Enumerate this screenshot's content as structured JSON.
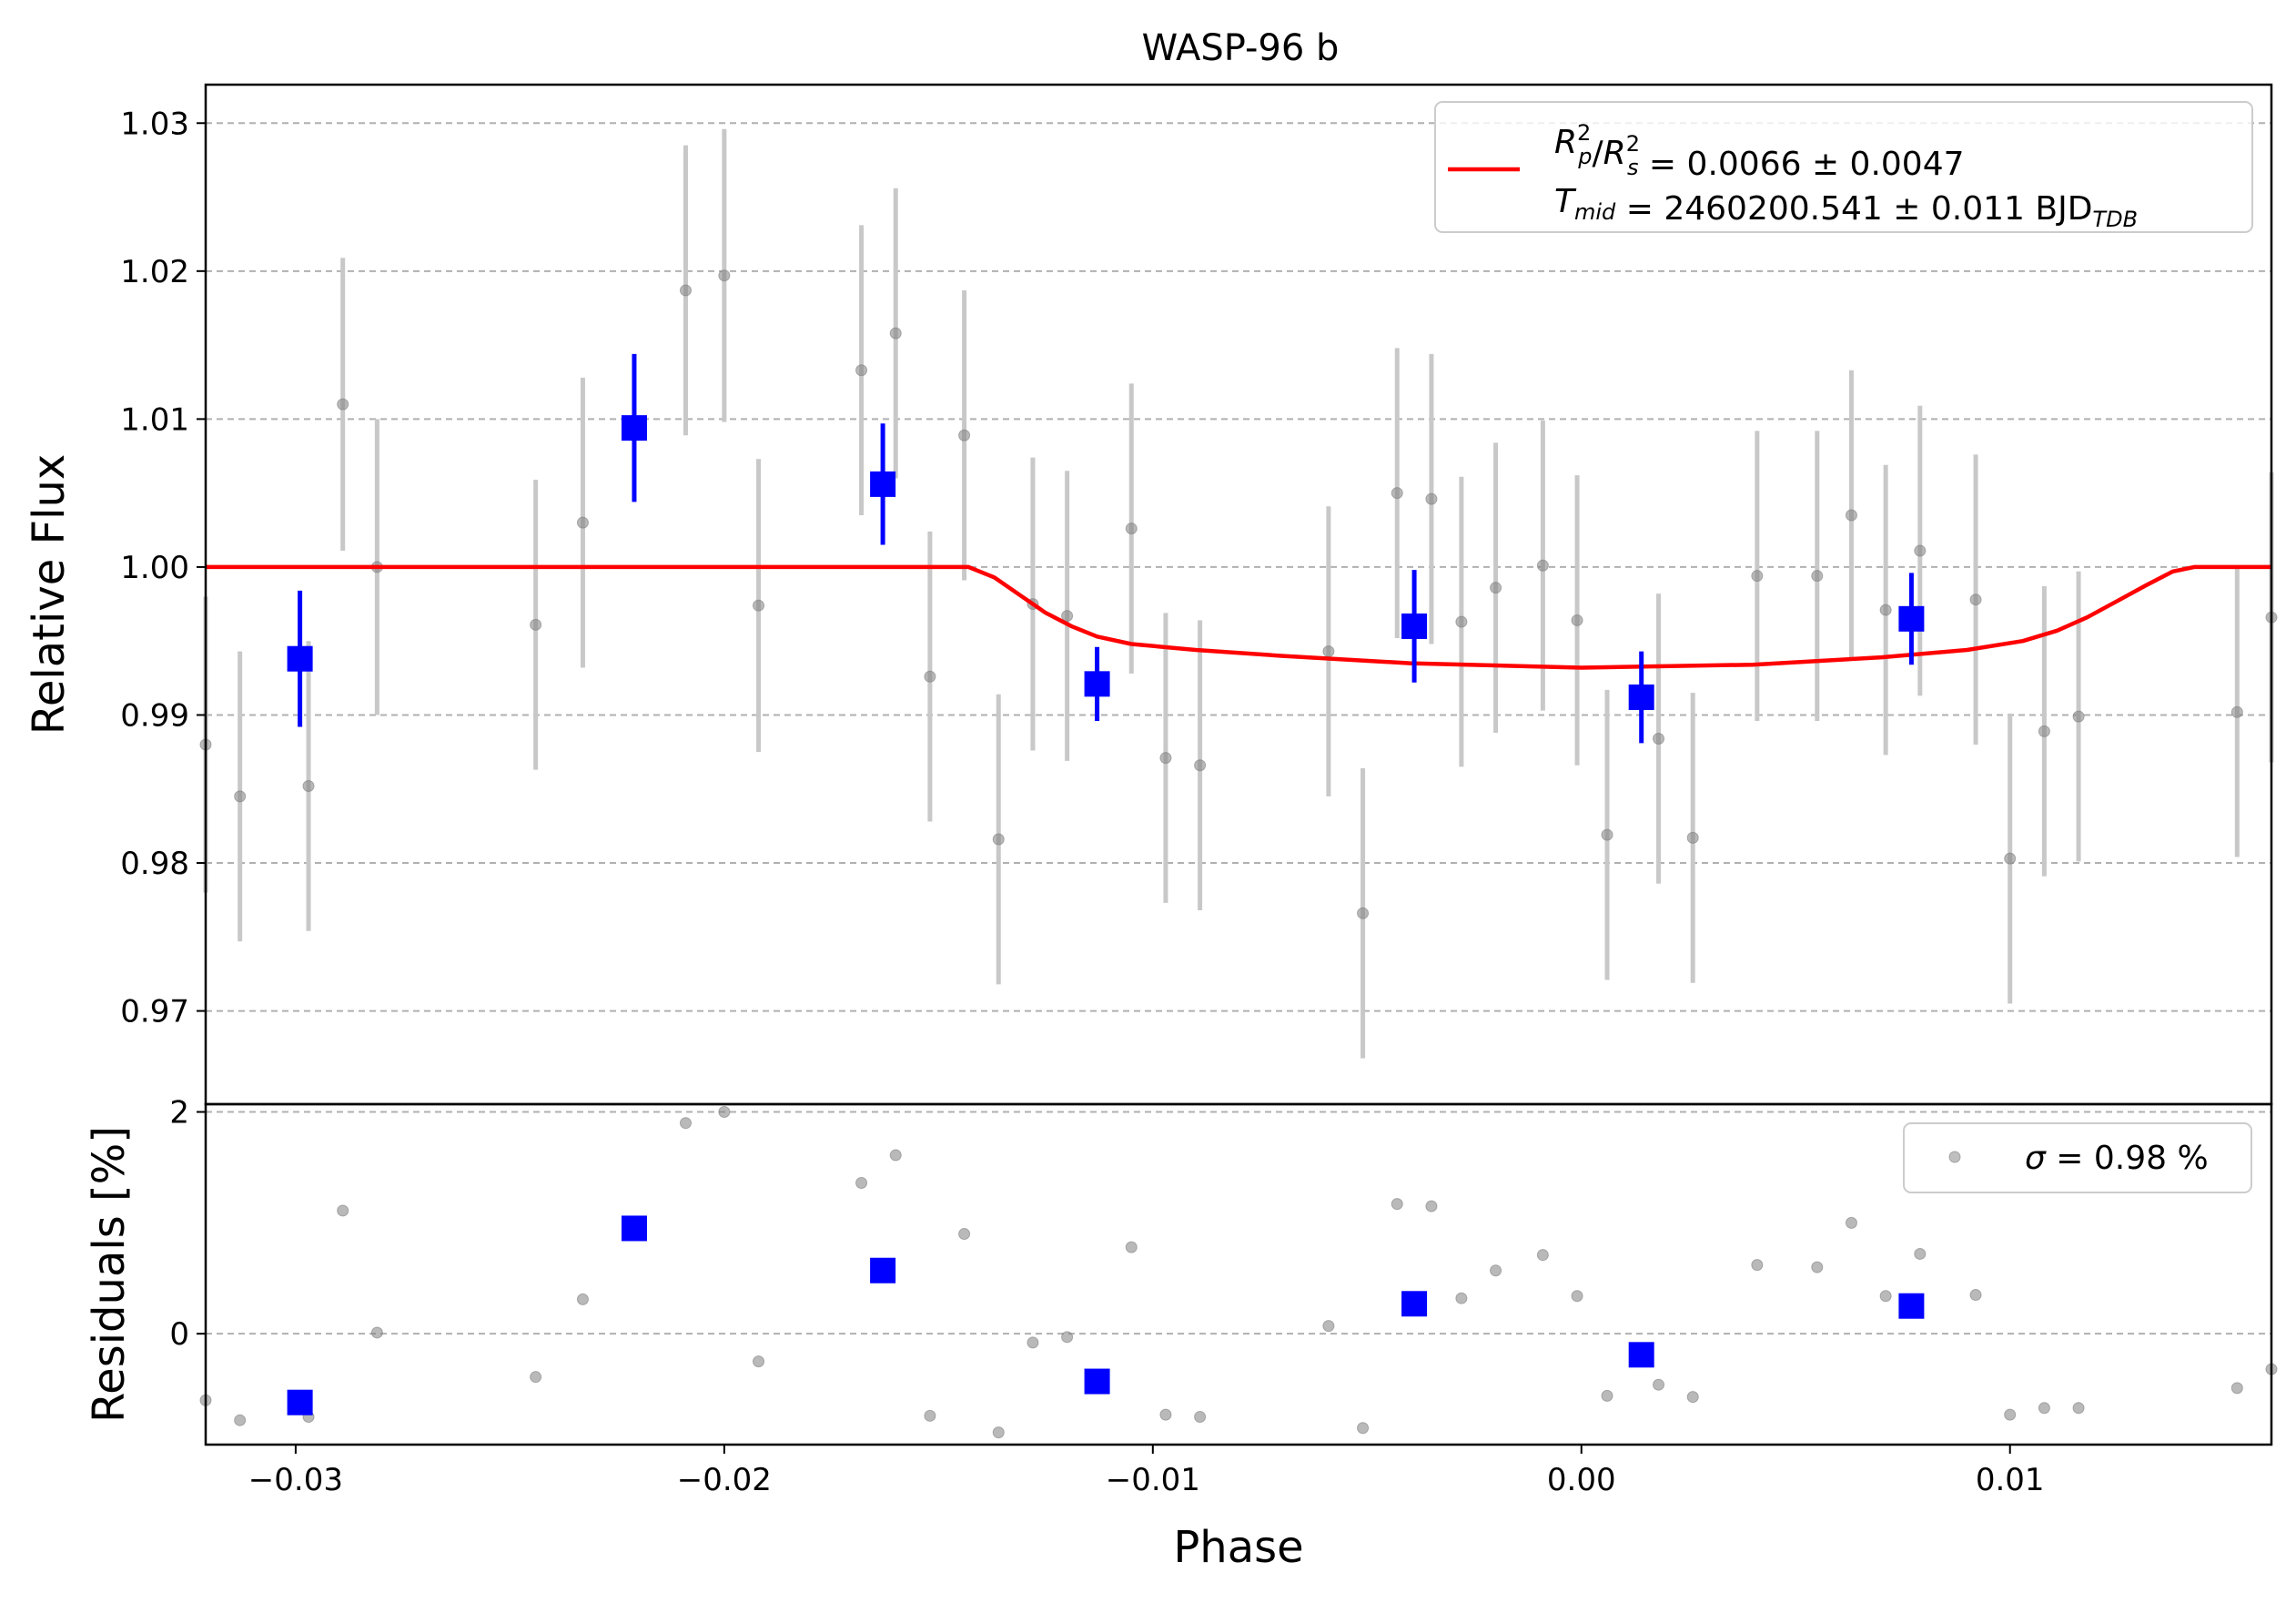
{
  "chart_data": {
    "type": "scatter",
    "title": "WASP-96 b",
    "xlabel": "Phase",
    "top_panel": {
      "ylabel": "Relative Flux",
      "xlim": [
        -0.0321,
        0.0161
      ],
      "ylim": [
        0.9637,
        1.0326
      ],
      "yticks": [
        0.97,
        0.98,
        0.99,
        1.0,
        1.01,
        1.02,
        1.03
      ],
      "ytick_labels": [
        "0.97",
        "0.98",
        "0.99",
        "1.00",
        "1.01",
        "1.02",
        "1.03"
      ],
      "grid": "horizontal dashed",
      "legend_position": "top-right",
      "legend_lines": [
        {
          "prefix": "",
          "parts": [
            {
              "t": "R",
              "i": true
            },
            {
              "t": "2",
              "sup": true,
              "sub": "p"
            },
            {
              "t": "/"
            },
            {
              "t": "R",
              "i": true
            },
            {
              "t": "2",
              "sup": true,
              "sub": "s"
            },
            {
              "t": " = 0.0066 ± 0.0047"
            }
          ]
        },
        {
          "prefix": "",
          "parts": [
            {
              "t": "T",
              "i": true
            },
            {
              "t": "",
              "sub": "mid"
            },
            {
              "t": " = 2460200.541 ± 0.011 BJD"
            },
            {
              "t": "",
              "sub": "TDB"
            }
          ]
        }
      ],
      "raw_series": {
        "name": "",
        "color": "#808080",
        "points": [
          {
            "x": -0.0321,
            "y": 0.988,
            "err": 0.01
          },
          {
            "x": -0.0313,
            "y": 0.9845,
            "err": 0.0098
          },
          {
            "x": -0.0297,
            "y": 0.9852,
            "err": 0.0098
          },
          {
            "x": -0.0289,
            "y": 1.011,
            "err": 0.0099
          },
          {
            "x": -0.0281,
            "y": 1.0,
            "err": 0.01
          },
          {
            "x": -0.0244,
            "y": 0.9961,
            "err": 0.0098
          },
          {
            "x": -0.0233,
            "y": 1.003,
            "err": 0.0098
          },
          {
            "x": -0.0209,
            "y": 1.0187,
            "err": 0.0098
          },
          {
            "x": -0.02,
            "y": 1.0197,
            "err": 0.0099
          },
          {
            "x": -0.0192,
            "y": 0.9974,
            "err": 0.0099
          },
          {
            "x": -0.0168,
            "y": 1.0133,
            "err": 0.0098
          },
          {
            "x": -0.016,
            "y": 1.0158,
            "err": 0.0098
          },
          {
            "x": -0.0152,
            "y": 0.9926,
            "err": 0.0098
          },
          {
            "x": -0.0144,
            "y": 1.0089,
            "err": 0.0098
          },
          {
            "x": -0.0136,
            "y": 0.9816,
            "err": 0.0098
          },
          {
            "x": -0.0128,
            "y": 0.9975,
            "err": 0.0099
          },
          {
            "x": -0.012,
            "y": 0.9967,
            "err": 0.0098
          },
          {
            "x": -0.0105,
            "y": 1.0026,
            "err": 0.0098
          },
          {
            "x": -0.0097,
            "y": 0.9871,
            "err": 0.0098
          },
          {
            "x": -0.0089,
            "y": 0.9866,
            "err": 0.0098
          },
          {
            "x": -0.0059,
            "y": 0.9943,
            "err": 0.0098
          },
          {
            "x": -0.0051,
            "y": 0.9766,
            "err": 0.0098
          },
          {
            "x": -0.0043,
            "y": 1.005,
            "err": 0.0098
          },
          {
            "x": -0.0035,
            "y": 1.0046,
            "err": 0.0098
          },
          {
            "x": -0.0028,
            "y": 0.9963,
            "err": 0.0098
          },
          {
            "x": -0.002,
            "y": 0.9986,
            "err": 0.0098
          },
          {
            "x": -0.0009,
            "y": 1.0001,
            "err": 0.0098
          },
          {
            "x": -0.0001,
            "y": 0.9964,
            "err": 0.0098
          },
          {
            "x": 0.0006,
            "y": 0.9819,
            "err": 0.0098
          },
          {
            "x": 0.0018,
            "y": 0.9884,
            "err": 0.0098
          },
          {
            "x": 0.0026,
            "y": 0.9817,
            "err": 0.0098
          },
          {
            "x": 0.0041,
            "y": 0.9994,
            "err": 0.0098
          },
          {
            "x": 0.0055,
            "y": 0.9994,
            "err": 0.0098
          },
          {
            "x": 0.0063,
            "y": 1.0035,
            "err": 0.0098
          },
          {
            "x": 0.0071,
            "y": 0.9971,
            "err": 0.0098
          },
          {
            "x": 0.0079,
            "y": 1.0011,
            "err": 0.0098
          },
          {
            "x": 0.0092,
            "y": 0.9978,
            "err": 0.0098
          },
          {
            "x": 0.01,
            "y": 0.9803,
            "err": 0.0098
          },
          {
            "x": 0.0108,
            "y": 0.9889,
            "err": 0.0098
          },
          {
            "x": 0.0116,
            "y": 0.9899,
            "err": 0.0098
          },
          {
            "x": 0.0153,
            "y": 0.9902,
            "err": 0.0098
          },
          {
            "x": 0.0161,
            "y": 0.9966,
            "err": 0.0098
          }
        ]
      },
      "binned_series": {
        "name": "",
        "color": "#0000ff",
        "points": [
          {
            "x": -0.0299,
            "y": 0.9938,
            "err": 0.0046
          },
          {
            "x": -0.0221,
            "y": 1.0094,
            "err": 0.005
          },
          {
            "x": -0.0163,
            "y": 1.0056,
            "err": 0.0041
          },
          {
            "x": -0.0113,
            "y": 0.9921,
            "err": 0.0025
          },
          {
            "x": -0.0039,
            "y": 0.996,
            "err": 0.0038
          },
          {
            "x": 0.0014,
            "y": 0.9912,
            "err": 0.0031
          },
          {
            "x": 0.0077,
            "y": 0.9965,
            "err": 0.0031
          }
        ]
      },
      "model_series": {
        "name": "",
        "color": "#ff0000",
        "points": [
          {
            "x": -0.0321,
            "y": 1.0
          },
          {
            "x": -0.0143,
            "y": 1.0
          },
          {
            "x": -0.0137,
            "y": 0.9993
          },
          {
            "x": -0.0131,
            "y": 0.9981
          },
          {
            "x": -0.0125,
            "y": 0.9969
          },
          {
            "x": -0.0119,
            "y": 0.996
          },
          {
            "x": -0.0113,
            "y": 0.9953
          },
          {
            "x": -0.0105,
            "y": 0.9948
          },
          {
            "x": -0.009,
            "y": 0.9944
          },
          {
            "x": -0.007,
            "y": 0.994
          },
          {
            "x": -0.004,
            "y": 0.9935
          },
          {
            "x": 0.0,
            "y": 0.9932
          },
          {
            "x": 0.004,
            "y": 0.9934
          },
          {
            "x": 0.007,
            "y": 0.9939
          },
          {
            "x": 0.009,
            "y": 0.9944
          },
          {
            "x": 0.0103,
            "y": 0.995
          },
          {
            "x": 0.0111,
            "y": 0.9957
          },
          {
            "x": 0.0118,
            "y": 0.9966
          },
          {
            "x": 0.0125,
            "y": 0.9977
          },
          {
            "x": 0.0132,
            "y": 0.9988
          },
          {
            "x": 0.0138,
            "y": 0.9997
          },
          {
            "x": 0.0143,
            "y": 1.0
          },
          {
            "x": 0.0161,
            "y": 1.0
          }
        ]
      }
    },
    "bottom_panel": {
      "ylabel": "Residuals [%]",
      "ylim": [
        -1.0,
        2.07
      ],
      "yticks": [
        0,
        2
      ],
      "ytick_labels": [
        "0",
        "2"
      ],
      "grid": "horizontal dashed",
      "legend_position": "top-right",
      "legend_label": "σ = 0.98 %",
      "raw_residuals": [
        {
          "x": -0.0321,
          "y": -0.6
        },
        {
          "x": -0.0313,
          "y": -0.78
        },
        {
          "x": -0.0297,
          "y": -0.75
        },
        {
          "x": -0.0289,
          "y": 1.11
        },
        {
          "x": -0.0281,
          "y": 0.01
        },
        {
          "x": -0.0244,
          "y": -0.39
        },
        {
          "x": -0.0233,
          "y": 0.31
        },
        {
          "x": -0.0209,
          "y": 1.9
        },
        {
          "x": -0.02,
          "y": 2.0
        },
        {
          "x": -0.0192,
          "y": -0.25
        },
        {
          "x": -0.0168,
          "y": 1.36
        },
        {
          "x": -0.016,
          "y": 1.61
        },
        {
          "x": -0.0152,
          "y": -0.74
        },
        {
          "x": -0.0144,
          "y": 0.9
        },
        {
          "x": -0.0136,
          "y": -0.89
        },
        {
          "x": -0.0128,
          "y": -0.08
        },
        {
          "x": -0.012,
          "y": -0.03
        },
        {
          "x": -0.0105,
          "y": 0.78
        },
        {
          "x": -0.0097,
          "y": -0.73
        },
        {
          "x": -0.0089,
          "y": -0.75
        },
        {
          "x": -0.0059,
          "y": 0.07
        },
        {
          "x": -0.0051,
          "y": -0.85
        },
        {
          "x": -0.0043,
          "y": 1.17
        },
        {
          "x": -0.0035,
          "y": 1.15
        },
        {
          "x": -0.0028,
          "y": 0.32
        },
        {
          "x": -0.002,
          "y": 0.57
        },
        {
          "x": -0.0009,
          "y": 0.71
        },
        {
          "x": -0.0001,
          "y": 0.34
        },
        {
          "x": 0.0006,
          "y": -0.56
        },
        {
          "x": 0.0018,
          "y": -0.46
        },
        {
          "x": 0.0026,
          "y": -0.57
        },
        {
          "x": 0.0041,
          "y": 0.62
        },
        {
          "x": 0.0055,
          "y": 0.6
        },
        {
          "x": 0.0063,
          "y": 1.0
        },
        {
          "x": 0.0071,
          "y": 0.34
        },
        {
          "x": 0.0079,
          "y": 0.72
        },
        {
          "x": 0.0092,
          "y": 0.35
        },
        {
          "x": 0.01,
          "y": -0.73
        },
        {
          "x": 0.0108,
          "y": -0.67
        },
        {
          "x": 0.0116,
          "y": -0.67
        },
        {
          "x": 0.0153,
          "y": -0.49
        },
        {
          "x": 0.0161,
          "y": -0.32
        }
      ],
      "binned_residuals": [
        {
          "x": -0.0299,
          "y": -0.62
        },
        {
          "x": -0.0221,
          "y": 0.95
        },
        {
          "x": -0.0163,
          "y": 0.57
        },
        {
          "x": -0.0113,
          "y": -0.43
        },
        {
          "x": -0.0039,
          "y": 0.27
        },
        {
          "x": 0.0014,
          "y": -0.19
        },
        {
          "x": 0.0077,
          "y": 0.25
        }
      ]
    },
    "xticks": [
      -0.03,
      -0.02,
      -0.01,
      0.0,
      0.01
    ],
    "xtick_labels": [
      "−0.03",
      "−0.02",
      "−0.01",
      "0.00",
      "0.01"
    ]
  }
}
